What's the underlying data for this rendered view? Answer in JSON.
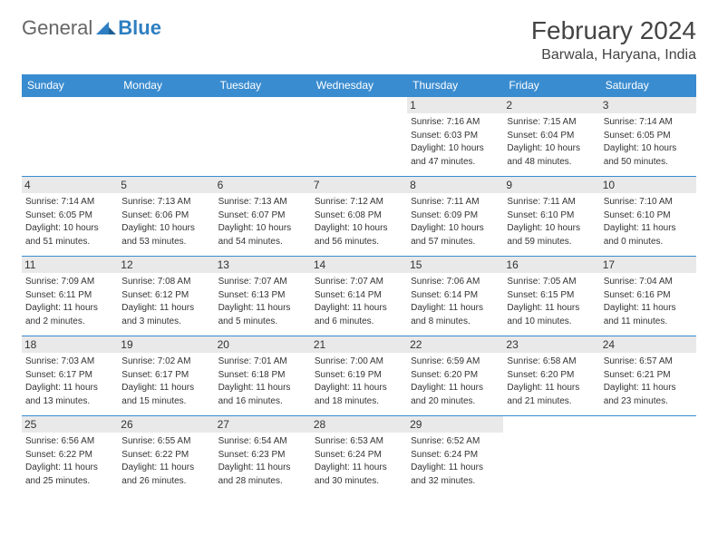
{
  "logo": {
    "general": "General",
    "blue": "Blue"
  },
  "title": "February 2024",
  "location": "Barwala, Haryana, India",
  "colors": {
    "header_bg": "#3a8cd0",
    "header_fg": "#ffffff",
    "daynum_bg": "#e9e9e9",
    "border": "#3a8cd0",
    "text": "#333333",
    "logo_blue": "#2e7fc1"
  },
  "weekdays": [
    "Sunday",
    "Monday",
    "Tuesday",
    "Wednesday",
    "Thursday",
    "Friday",
    "Saturday"
  ],
  "weeks": [
    [
      null,
      null,
      null,
      null,
      {
        "d": "1",
        "sr": "Sunrise: 7:16 AM",
        "ss": "Sunset: 6:03 PM",
        "dl1": "Daylight: 10 hours",
        "dl2": "and 47 minutes."
      },
      {
        "d": "2",
        "sr": "Sunrise: 7:15 AM",
        "ss": "Sunset: 6:04 PM",
        "dl1": "Daylight: 10 hours",
        "dl2": "and 48 minutes."
      },
      {
        "d": "3",
        "sr": "Sunrise: 7:14 AM",
        "ss": "Sunset: 6:05 PM",
        "dl1": "Daylight: 10 hours",
        "dl2": "and 50 minutes."
      }
    ],
    [
      {
        "d": "4",
        "sr": "Sunrise: 7:14 AM",
        "ss": "Sunset: 6:05 PM",
        "dl1": "Daylight: 10 hours",
        "dl2": "and 51 minutes."
      },
      {
        "d": "5",
        "sr": "Sunrise: 7:13 AM",
        "ss": "Sunset: 6:06 PM",
        "dl1": "Daylight: 10 hours",
        "dl2": "and 53 minutes."
      },
      {
        "d": "6",
        "sr": "Sunrise: 7:13 AM",
        "ss": "Sunset: 6:07 PM",
        "dl1": "Daylight: 10 hours",
        "dl2": "and 54 minutes."
      },
      {
        "d": "7",
        "sr": "Sunrise: 7:12 AM",
        "ss": "Sunset: 6:08 PM",
        "dl1": "Daylight: 10 hours",
        "dl2": "and 56 minutes."
      },
      {
        "d": "8",
        "sr": "Sunrise: 7:11 AM",
        "ss": "Sunset: 6:09 PM",
        "dl1": "Daylight: 10 hours",
        "dl2": "and 57 minutes."
      },
      {
        "d": "9",
        "sr": "Sunrise: 7:11 AM",
        "ss": "Sunset: 6:10 PM",
        "dl1": "Daylight: 10 hours",
        "dl2": "and 59 minutes."
      },
      {
        "d": "10",
        "sr": "Sunrise: 7:10 AM",
        "ss": "Sunset: 6:10 PM",
        "dl1": "Daylight: 11 hours",
        "dl2": "and 0 minutes."
      }
    ],
    [
      {
        "d": "11",
        "sr": "Sunrise: 7:09 AM",
        "ss": "Sunset: 6:11 PM",
        "dl1": "Daylight: 11 hours",
        "dl2": "and 2 minutes."
      },
      {
        "d": "12",
        "sr": "Sunrise: 7:08 AM",
        "ss": "Sunset: 6:12 PM",
        "dl1": "Daylight: 11 hours",
        "dl2": "and 3 minutes."
      },
      {
        "d": "13",
        "sr": "Sunrise: 7:07 AM",
        "ss": "Sunset: 6:13 PM",
        "dl1": "Daylight: 11 hours",
        "dl2": "and 5 minutes."
      },
      {
        "d": "14",
        "sr": "Sunrise: 7:07 AM",
        "ss": "Sunset: 6:14 PM",
        "dl1": "Daylight: 11 hours",
        "dl2": "and 6 minutes."
      },
      {
        "d": "15",
        "sr": "Sunrise: 7:06 AM",
        "ss": "Sunset: 6:14 PM",
        "dl1": "Daylight: 11 hours",
        "dl2": "and 8 minutes."
      },
      {
        "d": "16",
        "sr": "Sunrise: 7:05 AM",
        "ss": "Sunset: 6:15 PM",
        "dl1": "Daylight: 11 hours",
        "dl2": "and 10 minutes."
      },
      {
        "d": "17",
        "sr": "Sunrise: 7:04 AM",
        "ss": "Sunset: 6:16 PM",
        "dl1": "Daylight: 11 hours",
        "dl2": "and 11 minutes."
      }
    ],
    [
      {
        "d": "18",
        "sr": "Sunrise: 7:03 AM",
        "ss": "Sunset: 6:17 PM",
        "dl1": "Daylight: 11 hours",
        "dl2": "and 13 minutes."
      },
      {
        "d": "19",
        "sr": "Sunrise: 7:02 AM",
        "ss": "Sunset: 6:17 PM",
        "dl1": "Daylight: 11 hours",
        "dl2": "and 15 minutes."
      },
      {
        "d": "20",
        "sr": "Sunrise: 7:01 AM",
        "ss": "Sunset: 6:18 PM",
        "dl1": "Daylight: 11 hours",
        "dl2": "and 16 minutes."
      },
      {
        "d": "21",
        "sr": "Sunrise: 7:00 AM",
        "ss": "Sunset: 6:19 PM",
        "dl1": "Daylight: 11 hours",
        "dl2": "and 18 minutes."
      },
      {
        "d": "22",
        "sr": "Sunrise: 6:59 AM",
        "ss": "Sunset: 6:20 PM",
        "dl1": "Daylight: 11 hours",
        "dl2": "and 20 minutes."
      },
      {
        "d": "23",
        "sr": "Sunrise: 6:58 AM",
        "ss": "Sunset: 6:20 PM",
        "dl1": "Daylight: 11 hours",
        "dl2": "and 21 minutes."
      },
      {
        "d": "24",
        "sr": "Sunrise: 6:57 AM",
        "ss": "Sunset: 6:21 PM",
        "dl1": "Daylight: 11 hours",
        "dl2": "and 23 minutes."
      }
    ],
    [
      {
        "d": "25",
        "sr": "Sunrise: 6:56 AM",
        "ss": "Sunset: 6:22 PM",
        "dl1": "Daylight: 11 hours",
        "dl2": "and 25 minutes."
      },
      {
        "d": "26",
        "sr": "Sunrise: 6:55 AM",
        "ss": "Sunset: 6:22 PM",
        "dl1": "Daylight: 11 hours",
        "dl2": "and 26 minutes."
      },
      {
        "d": "27",
        "sr": "Sunrise: 6:54 AM",
        "ss": "Sunset: 6:23 PM",
        "dl1": "Daylight: 11 hours",
        "dl2": "and 28 minutes."
      },
      {
        "d": "28",
        "sr": "Sunrise: 6:53 AM",
        "ss": "Sunset: 6:24 PM",
        "dl1": "Daylight: 11 hours",
        "dl2": "and 30 minutes."
      },
      {
        "d": "29",
        "sr": "Sunrise: 6:52 AM",
        "ss": "Sunset: 6:24 PM",
        "dl1": "Daylight: 11 hours",
        "dl2": "and 32 minutes."
      },
      null,
      null
    ]
  ]
}
